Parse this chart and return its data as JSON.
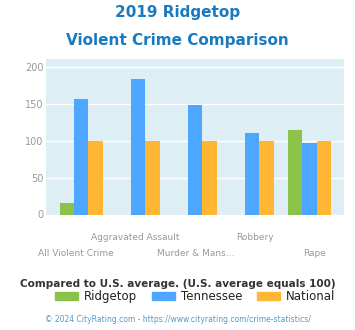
{
  "title_line1": "2019 Ridgetop",
  "title_line2": "Violent Crime Comparison",
  "title_color": "#1a7abf",
  "categories": [
    "All Violent Crime",
    "Aggravated Assault",
    "Murder & Mans...",
    "Robbery",
    "Rape"
  ],
  "ridgetop": [
    15,
    0,
    0,
    0,
    114
  ],
  "tennessee": [
    157,
    183,
    148,
    111,
    97
  ],
  "national": [
    100,
    100,
    100,
    100,
    100
  ],
  "ridgetop_color": "#8bc34a",
  "tennessee_color": "#4da6ff",
  "national_color": "#ffb733",
  "ylim": [
    0,
    210
  ],
  "yticks": [
    0,
    50,
    100,
    150,
    200
  ],
  "bg_color": "#ddeef5",
  "legend_labels": [
    "Ridgetop",
    "Tennessee",
    "National"
  ],
  "footnote": "Compared to U.S. average. (U.S. average equals 100)",
  "footnote_color": "#333333",
  "copyright": "© 2024 CityRating.com - https://www.cityrating.com/crime-statistics/",
  "copyright_color": "#5599cc",
  "bar_width": 0.25,
  "grid_color": "#ffffff",
  "ytick_color": "#999999",
  "xtick_color": "#999999"
}
